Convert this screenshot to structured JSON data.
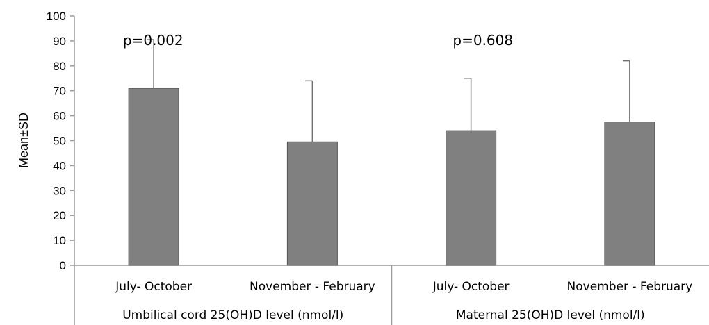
{
  "chart_data": {
    "type": "bar",
    "ylabel": "Mean±SD",
    "ylim": [
      0,
      100
    ],
    "yticks": [
      "0",
      "10",
      "20",
      "30",
      "40",
      "50",
      "60",
      "70",
      "80",
      "90",
      "100"
    ],
    "grid": false,
    "groups": [
      {
        "label": "Umbilical cord 25(OH)D level (nmol/l)",
        "p_value": "p=0.002",
        "categories": [
          "July- October",
          "November - February"
        ],
        "values": [
          71,
          49.5
        ],
        "sd_upper": [
          90.5,
          74
        ]
      },
      {
        "label": "Maternal 25(OH)D level (nmol/l)",
        "p_value": "p=0.608",
        "categories": [
          "July- October",
          "November - February"
        ],
        "values": [
          54,
          57.5
        ],
        "sd_upper": [
          75,
          82
        ]
      }
    ],
    "colors": {
      "bar": "#808080",
      "bar_border": "#555555",
      "axis": "#9a9a9a"
    }
  }
}
